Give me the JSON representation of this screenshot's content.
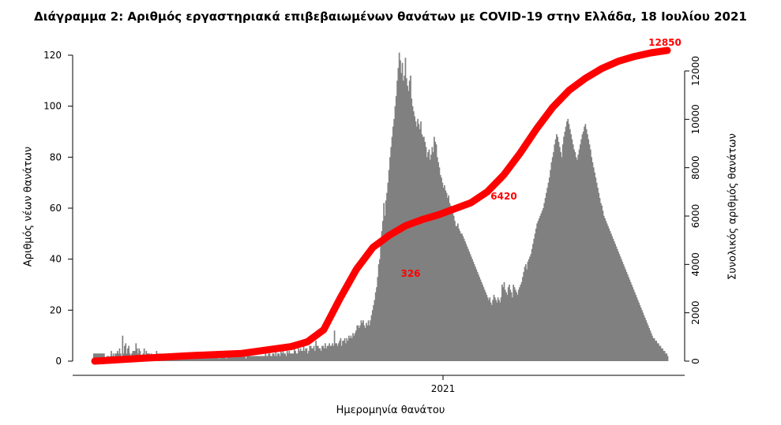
{
  "chart_data": {
    "type": "bar",
    "title": "Διάγραμμα 2: Αριθμός εργαστηριακά επιβεβαιωμένων θανάτων με COVID-19 στην Ελλάδα, 18 Ιουλίου 2021",
    "xlabel": "Ημερομηνία θανάτου",
    "ylabel": "Αριθμός νέων θανάτων",
    "y2label": "Συνολικός αριθμός θανάτων",
    "ylim": [
      0,
      125
    ],
    "y2lim": [
      0,
      12600
    ],
    "yticks": [
      0,
      20,
      40,
      60,
      80,
      100,
      120
    ],
    "y2ticks": [
      0,
      2000,
      4000,
      6000,
      8000,
      10000,
      12000
    ],
    "xtick_label": "2021",
    "bar_color": "#808080",
    "line_color": "#ff0000",
    "bars": {
      "name": "Αριθμός νέων θανάτων",
      "values": [
        3,
        3,
        3,
        3,
        3,
        3,
        3,
        3,
        3,
        3,
        3,
        1,
        1,
        2,
        2,
        1,
        2,
        4,
        2,
        3,
        2,
        3,
        3,
        4,
        3,
        5,
        3,
        2,
        10,
        3,
        6,
        7,
        3,
        5,
        6,
        3,
        2,
        3,
        4,
        4,
        4,
        7,
        5,
        3,
        5,
        4,
        2,
        1,
        3,
        5,
        2,
        4,
        3,
        3,
        3,
        2,
        3,
        2,
        2,
        2,
        2,
        4,
        3,
        2,
        3,
        2,
        3,
        2,
        2,
        2,
        1,
        1,
        2,
        2,
        2,
        1,
        2,
        2,
        1,
        1,
        2,
        3,
        2,
        1,
        1,
        2,
        2,
        2,
        2,
        2,
        2,
        2,
        2,
        2,
        2,
        1,
        2,
        2,
        2,
        2,
        2,
        2,
        1,
        2,
        2,
        2,
        1,
        2,
        1,
        2,
        2,
        2,
        2,
        2,
        2,
        2,
        2,
        2,
        2,
        3,
        2,
        2,
        1,
        2,
        2,
        2,
        2,
        2,
        2,
        1,
        2,
        2,
        2,
        2,
        2,
        2,
        2,
        2,
        2,
        2,
        2,
        2,
        2,
        2,
        2,
        2,
        2,
        2,
        1,
        2,
        2,
        2,
        2,
        2,
        2,
        2,
        2,
        2,
        2,
        2,
        2,
        2,
        2,
        2,
        2,
        2,
        2,
        3,
        2,
        2,
        3,
        3,
        2,
        2,
        3,
        3,
        2,
        4,
        2,
        3,
        3,
        2,
        5,
        3,
        4,
        3,
        3,
        2,
        4,
        3,
        4,
        3,
        3,
        3,
        3,
        5,
        4,
        3,
        3,
        5,
        4,
        5,
        4,
        4,
        6,
        4,
        5,
        5,
        3,
        4,
        6,
        6,
        5,
        5,
        6,
        4,
        8,
        6,
        6,
        5,
        5,
        4,
        6,
        6,
        5,
        7,
        5,
        6,
        6,
        7,
        6,
        6,
        7,
        6,
        12,
        7,
        7,
        6,
        7,
        8,
        9,
        6,
        8,
        8,
        9,
        7,
        9,
        8,
        10,
        9,
        10,
        9,
        11,
        10,
        11,
        12,
        14,
        14,
        13,
        14,
        16,
        15,
        16,
        14,
        13,
        15,
        14,
        16,
        14,
        16,
        18,
        20,
        22,
        24,
        27,
        29,
        33,
        38,
        40,
        47,
        51,
        55,
        62,
        57,
        63,
        66,
        70,
        75,
        80,
        84,
        88,
        92,
        95,
        100,
        104,
        110,
        115,
        121,
        118,
        113,
        117,
        110,
        112,
        119,
        111,
        108,
        106,
        110,
        112,
        103,
        100,
        98,
        96,
        94,
        92,
        95,
        93,
        91,
        94,
        89,
        88,
        88,
        86,
        84,
        80,
        82,
        83,
        79,
        81,
        84,
        82,
        88,
        86,
        85,
        80,
        78,
        76,
        73,
        72,
        70,
        68,
        69,
        67,
        66,
        64,
        65,
        62,
        61,
        59,
        58,
        57,
        55,
        53,
        53,
        54,
        52,
        51,
        50,
        50,
        49,
        48,
        47,
        46,
        45,
        44,
        43,
        42,
        41,
        40,
        39,
        38,
        37,
        36,
        35,
        34,
        33,
        32,
        31,
        30,
        29,
        28,
        27,
        26,
        25,
        24,
        25,
        23,
        22,
        24,
        26,
        25,
        24,
        23,
        25,
        24,
        23,
        25,
        30,
        29,
        31,
        28,
        27,
        26,
        29,
        30,
        28,
        27,
        25,
        30,
        29,
        28,
        27,
        26,
        28,
        29,
        30,
        31,
        33,
        35,
        37,
        38,
        36,
        39,
        40,
        41,
        42,
        44,
        46,
        48,
        50,
        52,
        54,
        55,
        56,
        57,
        58,
        59,
        60,
        62,
        64,
        66,
        68,
        70,
        72,
        75,
        78,
        80,
        82,
        85,
        87,
        89,
        88,
        86,
        84,
        82,
        80,
        85,
        88,
        90,
        92,
        94,
        95,
        93,
        91,
        89,
        87,
        85,
        83,
        82,
        80,
        79,
        81,
        83,
        85,
        87,
        89,
        90,
        92,
        93,
        91,
        89,
        87,
        85,
        83,
        80,
        78,
        76,
        74,
        72,
        70,
        68,
        66,
        64,
        62,
        61,
        59,
        57,
        56,
        55,
        54,
        53,
        52,
        51,
        50,
        49,
        48,
        47,
        46,
        45,
        44,
        43,
        42,
        41,
        40,
        39,
        38,
        37,
        36,
        35,
        34,
        33,
        32,
        31,
        30,
        29,
        28,
        27,
        26,
        25,
        24,
        23,
        22,
        21,
        20,
        19,
        18,
        17,
        16,
        15,
        14,
        13,
        12,
        11,
        10,
        9,
        9,
        8,
        8,
        7,
        7,
        6,
        6,
        5,
        5,
        4,
        4,
        3,
        3,
        2
      ]
    },
    "cumulative": {
      "name": "Συνολικός αριθμός θανάτων",
      "points": [
        [
          0,
          0
        ],
        [
          60,
          120
        ],
        [
          120,
          230
        ],
        [
          180,
          320
        ],
        [
          240,
          600
        ],
        [
          260,
          800
        ],
        [
          280,
          1300
        ],
        [
          300,
          2600
        ],
        [
          320,
          3800
        ],
        [
          340,
          4700
        ],
        [
          360,
          5200
        ],
        [
          380,
          5600
        ],
        [
          400,
          5850
        ],
        [
          420,
          6050
        ],
        [
          440,
          6300
        ],
        [
          460,
          6550
        ],
        [
          480,
          7000
        ],
        [
          500,
          7700
        ],
        [
          520,
          8600
        ],
        [
          540,
          9600
        ],
        [
          560,
          10500
        ],
        [
          580,
          11200
        ],
        [
          600,
          11700
        ],
        [
          620,
          12100
        ],
        [
          640,
          12400
        ],
        [
          660,
          12600
        ],
        [
          680,
          12750
        ],
        [
          700,
          12850
        ]
      ],
      "x_max": 700
    },
    "annotations": [
      "326",
      "6420",
      "12850"
    ]
  }
}
